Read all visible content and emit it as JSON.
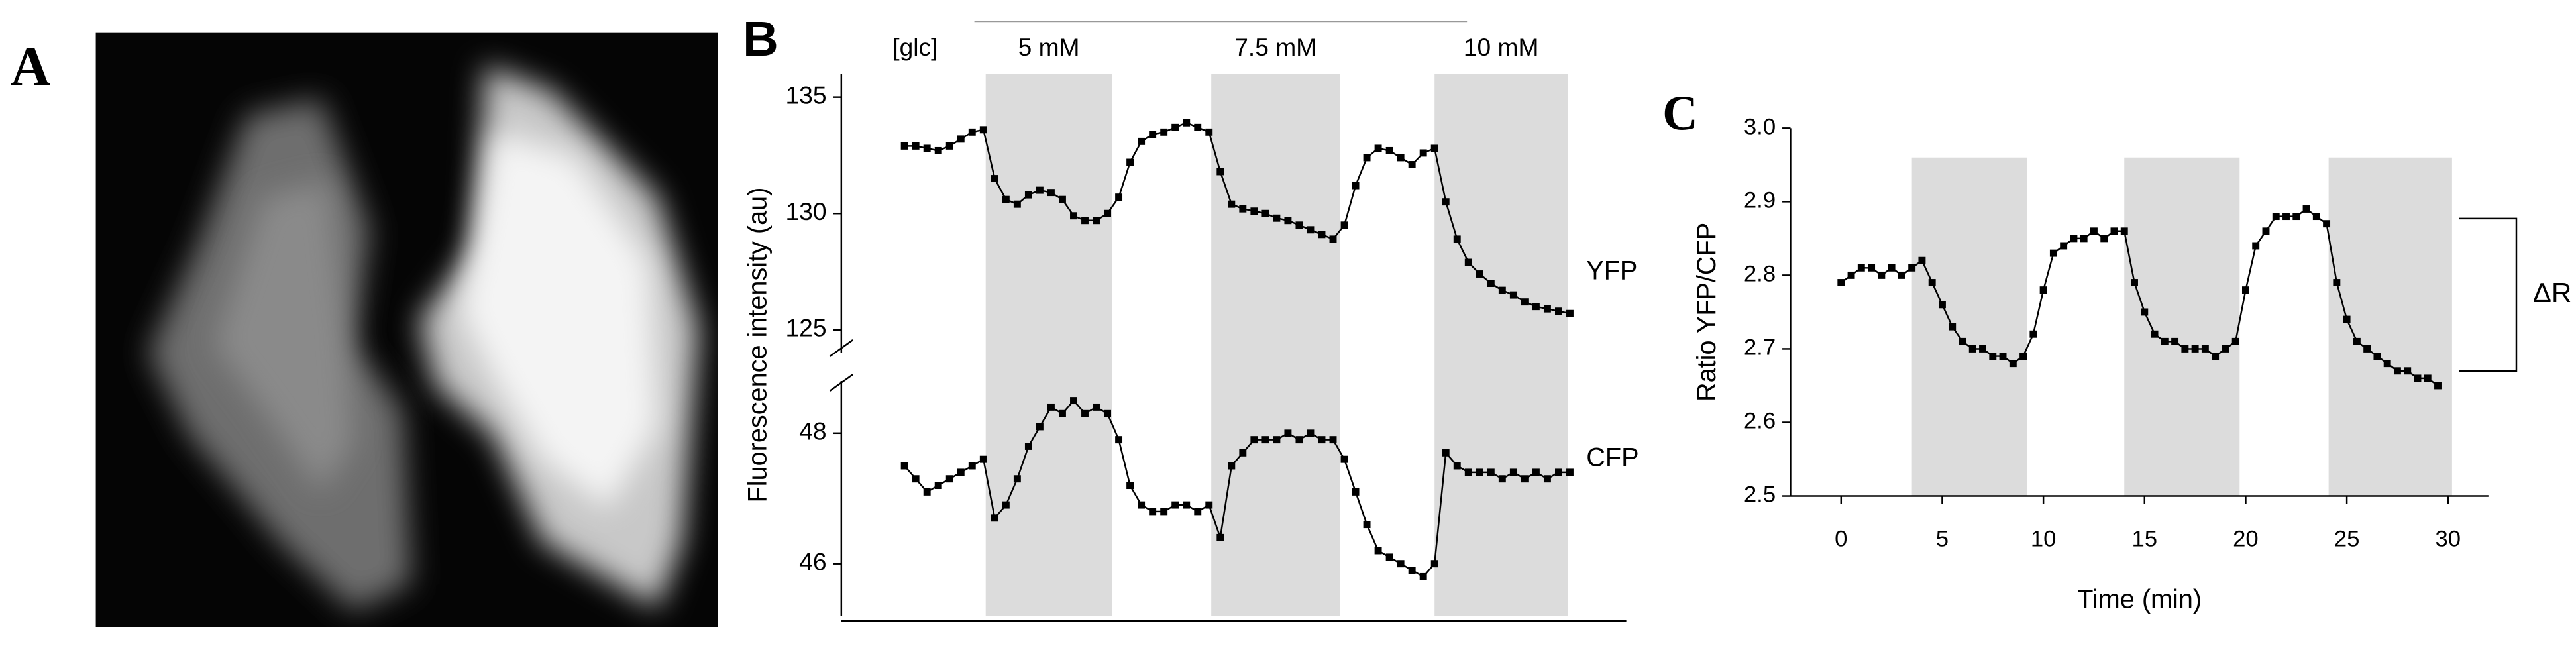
{
  "chart_data": [
    {
      "type": "image",
      "panel_label": "A"
    },
    {
      "type": "line",
      "panel_label": "B",
      "ylabel": "Fluorescence intensity (au)",
      "stimulus_label": "[glc]",
      "shaded_spans": [
        [
          3.6,
          9.2
        ],
        [
          13.6,
          19.3
        ],
        [
          23.5,
          29.4
        ]
      ],
      "shaded_labels": [
        "5 mM",
        "7.5 mM",
        "10 mM"
      ],
      "shade_color": "#dcdcdc",
      "xlim": [
        -2.8,
        32
      ],
      "ylim": [
        124,
        136
      ],
      "yticks": [
        125,
        130,
        135
      ],
      "y2lim": [
        45.2,
        48.8
      ],
      "y2ticks": [
        46,
        48
      ],
      "x": [
        0,
        0.5,
        1,
        1.5,
        2,
        2.5,
        3,
        3.5,
        4,
        4.5,
        5,
        5.5,
        6,
        6.5,
        7,
        7.5,
        8,
        8.5,
        9,
        9.5,
        10,
        10.5,
        11,
        11.5,
        12,
        12.5,
        13,
        13.5,
        14,
        14.5,
        15,
        15.5,
        16,
        16.5,
        17,
        17.5,
        18,
        18.5,
        19,
        19.5,
        20,
        20.5,
        21,
        21.5,
        22,
        22.5,
        23,
        23.5,
        24,
        24.5,
        25,
        25.5,
        26,
        26.5,
        27,
        27.5,
        28,
        28.5,
        29,
        29.5
      ],
      "series": [
        {
          "name": "YFP",
          "color": "#000000",
          "values": [
            132.9,
            132.9,
            132.8,
            132.7,
            132.9,
            133.2,
            133.5,
            133.6,
            131.5,
            130.6,
            130.4,
            130.8,
            131.0,
            130.9,
            130.6,
            129.9,
            129.7,
            129.7,
            130.0,
            130.7,
            132.2,
            133.1,
            133.4,
            133.5,
            133.7,
            133.9,
            133.7,
            133.5,
            131.8,
            130.4,
            130.2,
            130.1,
            130.0,
            129.8,
            129.7,
            129.5,
            129.3,
            129.1,
            128.9,
            129.5,
            131.2,
            132.4,
            132.8,
            132.7,
            132.4,
            132.1,
            132.6,
            132.8,
            130.5,
            128.9,
            127.9,
            127.4,
            127.0,
            126.7,
            126.5,
            126.2,
            126.0,
            125.9,
            125.8,
            125.7
          ]
        },
        {
          "name": "CFP",
          "color": "#000000",
          "axis": "y2",
          "values": [
            47.5,
            47.3,
            47.1,
            47.2,
            47.3,
            47.4,
            47.5,
            47.6,
            46.7,
            46.9,
            47.3,
            47.8,
            48.1,
            48.4,
            48.3,
            48.5,
            48.3,
            48.4,
            48.3,
            47.9,
            47.2,
            46.9,
            46.8,
            46.8,
            46.9,
            46.9,
            46.8,
            46.9,
            46.4,
            47.5,
            47.7,
            47.9,
            47.9,
            47.9,
            48.0,
            47.9,
            48.0,
            47.9,
            47.9,
            47.6,
            47.1,
            46.6,
            46.2,
            46.1,
            46.0,
            45.9,
            45.8,
            46.0,
            47.7,
            47.5,
            47.4,
            47.4,
            47.4,
            47.3,
            47.4,
            47.3,
            47.4,
            47.3,
            47.4,
            47.4
          ]
        }
      ]
    },
    {
      "type": "line",
      "panel_label": "C",
      "xlabel": "Time (min)",
      "ylabel": "Ratio YFP/CFP",
      "shaded_spans": [
        [
          3.5,
          9.2
        ],
        [
          14.0,
          19.7
        ],
        [
          24.1,
          30.2
        ]
      ],
      "shade_ylim": [
        2.5,
        2.96
      ],
      "shade_color": "#dcdcdc",
      "xlim": [
        -2.5,
        32
      ],
      "xticks": [
        0,
        5,
        10,
        15,
        20,
        25,
        30
      ],
      "ylim": [
        2.5,
        3.0
      ],
      "yticks": [
        2.5,
        2.6,
        2.7,
        2.8,
        2.9,
        {
          "value": 3,
          "label": "3.0"
        }
      ],
      "annotations": [
        {
          "text": "ΔR",
          "y": [
            2.67,
            2.877
          ]
        }
      ],
      "x": [
        0,
        0.5,
        1,
        1.5,
        2,
        2.5,
        3,
        3.5,
        4,
        4.5,
        5,
        5.5,
        6,
        6.5,
        7,
        7.5,
        8,
        8.5,
        9,
        9.5,
        10,
        10.5,
        11,
        11.5,
        12,
        12.5,
        13,
        13.5,
        14,
        14.5,
        15,
        15.5,
        16,
        16.5,
        17,
        17.5,
        18,
        18.5,
        19,
        19.5,
        20,
        20.5,
        21,
        21.5,
        22,
        22.5,
        23,
        23.5,
        24,
        24.5,
        25,
        25.5,
        26,
        26.5,
        27,
        27.5,
        28,
        28.5,
        29,
        29.5
      ],
      "series": [
        {
          "color": "#000000",
          "values": [
            2.79,
            2.8,
            2.81,
            2.81,
            2.8,
            2.81,
            2.8,
            2.81,
            2.82,
            2.79,
            2.76,
            2.73,
            2.71,
            2.7,
            2.7,
            2.69,
            2.69,
            2.68,
            2.69,
            2.72,
            2.78,
            2.83,
            2.84,
            2.85,
            2.85,
            2.86,
            2.85,
            2.86,
            2.86,
            2.79,
            2.75,
            2.72,
            2.71,
            2.71,
            2.7,
            2.7,
            2.7,
            2.69,
            2.7,
            2.71,
            2.78,
            2.84,
            2.86,
            2.88,
            2.88,
            2.88,
            2.89,
            2.88,
            2.87,
            2.79,
            2.74,
            2.71,
            2.7,
            2.69,
            2.68,
            2.67,
            2.67,
            2.66,
            2.66,
            2.65
          ]
        }
      ]
    }
  ]
}
